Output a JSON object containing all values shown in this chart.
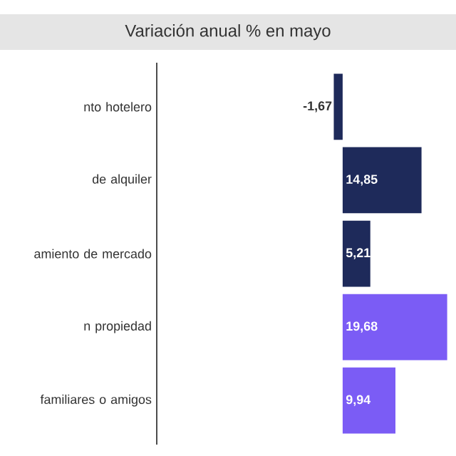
{
  "chart_data": {
    "type": "bar",
    "orientation": "horizontal",
    "title": "Variación anual % en mayo",
    "categories": [
      "nto hotelero",
      "de alquiler",
      "amiento de mercado",
      "n propiedad",
      "familiares o amigos"
    ],
    "values": [
      -1.67,
      14.85,
      5.21,
      19.68,
      9.94
    ],
    "value_labels": [
      "-1,67",
      "14,85",
      "5,21",
      "19,68",
      "9,94"
    ],
    "colors": [
      "#1e2a5a",
      "#1e2a5a",
      "#1e2a5a",
      "#7b5cf5",
      "#7b5cf5"
    ],
    "xlim": [
      -35,
      20
    ],
    "tick_labels": "y"
  }
}
